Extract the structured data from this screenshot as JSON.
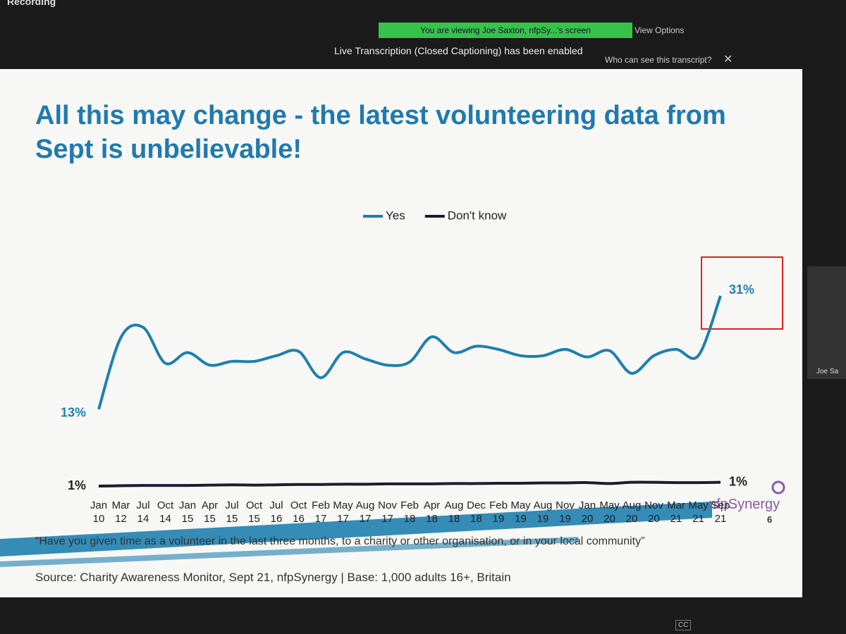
{
  "window": {
    "recording": "Recording",
    "sharing_banner": "You are viewing Joe Saxton, nfpSy...'s screen",
    "view_options": "View Options",
    "transcription_notice": "Live Transcription (Closed Captioning) has been enabled",
    "transcript_visibility": "Who can see this transcript?",
    "participant": "Joe Sa",
    "cc_button": "CC"
  },
  "slide": {
    "question": "“Have you given time as a volunteer in the last three months, to a charity or other organisation, or in your local community”",
    "source": "Source: Charity Awareness Monitor, Sept 21, nfpSynergy | Base: 1,000 adults 16+, Britain",
    "logo": "nfpSynergy",
    "page_number": "6"
  },
  "chart_data": {
    "type": "line",
    "title": "All this may change - the latest volunteering data from Sept is unbelievable!",
    "legend": "top",
    "categories": [
      "Jan 10",
      "Mar 12",
      "Jul 14",
      "Oct 14",
      "Jan 15",
      "Apr 15",
      "Jul 15",
      "Oct 15",
      "Jul 16",
      "Oct 16",
      "Feb 17",
      "May 17",
      "Aug 17",
      "Nov 17",
      "Feb 18",
      "Apr 18",
      "Aug 18",
      "Dec 18",
      "Feb 19",
      "May 19",
      "Aug 19",
      "Nov 19",
      "Jan 20",
      "May 20",
      "Aug 20",
      "Nov 20",
      "Mar 21",
      "May 21",
      "Sep 21"
    ],
    "series": [
      {
        "name": "Yes",
        "color": "#1f7fb0",
        "values": [
          13,
          24.4,
          26,
          20.3,
          22,
          20,
          20.6,
          20.6,
          21.5,
          22.2,
          18,
          22,
          21,
          20,
          20.5,
          24.5,
          22,
          23,
          22.5,
          21.5,
          21.5,
          22.5,
          21.3,
          22.3,
          18.7,
          21.5,
          22.5,
          21.5,
          31
        ],
        "value_labels": [
          "13%",
          null,
          null,
          null,
          null,
          null,
          null,
          null,
          null,
          null,
          null,
          null,
          null,
          null,
          null,
          null,
          null,
          null,
          null,
          null,
          null,
          null,
          null,
          null,
          null,
          null,
          null,
          null,
          "31%"
        ]
      },
      {
        "name": "Don't know",
        "color": "#1c1c2e",
        "values": [
          0.8,
          0.85,
          0.9,
          0.9,
          0.9,
          0.95,
          1,
          0.95,
          1,
          1.05,
          1.05,
          1.1,
          1.1,
          1.15,
          1.15,
          1.15,
          1.2,
          1.2,
          1.25,
          1.25,
          1.3,
          1.3,
          1.35,
          1.2,
          1.4,
          1.4,
          1.35,
          1.35,
          1.4
        ],
        "value_labels": [
          "1%",
          null,
          null,
          null,
          null,
          null,
          null,
          null,
          null,
          null,
          null,
          null,
          null,
          null,
          null,
          null,
          null,
          null,
          null,
          null,
          null,
          null,
          null,
          null,
          null,
          null,
          null,
          null,
          "1%"
        ]
      }
    ]
  }
}
